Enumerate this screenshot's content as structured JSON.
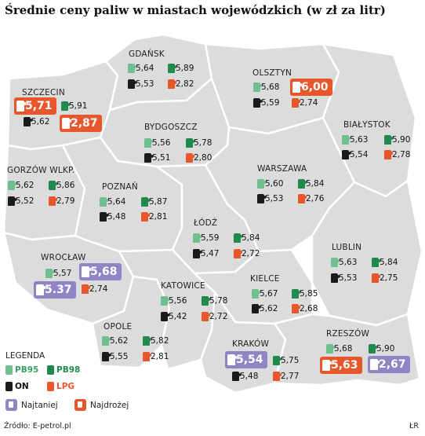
{
  "title": "Średnie ceny paliw w miastach wojewódzkich (w zł za litr)",
  "colors": {
    "pb95": "#6fbf8f",
    "pb98": "#1f8a4c",
    "on": "#1a1a1a",
    "lpg": "#e8572c",
    "cheapest": "#8f84c4",
    "most_expensive": "#e8572c",
    "region_fill": "#dcdcdc"
  },
  "cities": {
    "gdansk": {
      "name": "GDAŃSK",
      "pb95": "5,64",
      "pb98": "5,89",
      "on": "5,53",
      "lpg": "2,82"
    },
    "olsztyn": {
      "name": "OLSZTYN",
      "pb95": "5,68",
      "pb98": "6,00",
      "on": "5,59",
      "lpg": "2,74"
    },
    "szczecin": {
      "name": "SZCZECIN",
      "pb95": "5,71",
      "pb98": "5,91",
      "on": "5,62",
      "lpg": "2,87"
    },
    "bydgoszcz": {
      "name": "BYDGOSZCZ",
      "pb95": "5,56",
      "pb98": "5,78",
      "on": "5,51",
      "lpg": "2,80"
    },
    "bialystok": {
      "name": "BIAŁYSTOK",
      "pb95": "5,63",
      "pb98": "5,90",
      "on": "5,54",
      "lpg": "2,78"
    },
    "gorzow": {
      "name": "GORZÓW WLKP.",
      "pb95": "5,62",
      "pb98": "5,86",
      "on": "5,52",
      "lpg": "2,79"
    },
    "warszawa": {
      "name": "WARSZAWA",
      "pb95": "5,60",
      "pb98": "5,84",
      "on": "5,53",
      "lpg": "2,76"
    },
    "poznan": {
      "name": "POZNAŃ",
      "pb95": "5,64",
      "pb98": "5,87",
      "on": "5,48",
      "lpg": "2,81"
    },
    "lodz": {
      "name": "ŁÓDŹ",
      "pb95": "5,59",
      "pb98": "5,84",
      "on": "5,47",
      "lpg": "2,72"
    },
    "lublin": {
      "name": "LUBLIN",
      "pb95": "5,63",
      "pb98": "5,84",
      "on": "5,53",
      "lpg": "2,75"
    },
    "wroclaw": {
      "name": "WROCŁAW",
      "pb95": "5,57",
      "pb98": "5,68",
      "on": "5.37",
      "lpg": "2,74"
    },
    "katowice": {
      "name": "KATOWICE",
      "pb95": "5,56",
      "pb98": "5,78",
      "on": "5,42",
      "lpg": "2,72"
    },
    "kielce": {
      "name": "KIELCE",
      "pb95": "5,67",
      "pb98": "5,85",
      "on": "5,62",
      "lpg": "2,68"
    },
    "opole": {
      "name": "OPOLE",
      "pb95": "5,62",
      "pb98": "5,82",
      "on": "5,55",
      "lpg": "2,81"
    },
    "krakow": {
      "name": "KRAKÓW",
      "pb95": "5,54",
      "pb98": "5,75",
      "on": "5,48",
      "lpg": "2,77"
    },
    "rzeszow": {
      "name": "RZESZÓW",
      "pb95": "5,68",
      "pb98": "5,90",
      "on": "5,63",
      "lpg": "2,67"
    }
  },
  "legend": {
    "title": "LEGENDA",
    "pb95": "PB95",
    "pb98": "PB98",
    "on": "ON",
    "lpg": "LPG",
    "cheapest": "Najtaniej",
    "most_expensive": "Najdrożej"
  },
  "source": "Źródło: E-petrol.pl",
  "author": "ŁR"
}
